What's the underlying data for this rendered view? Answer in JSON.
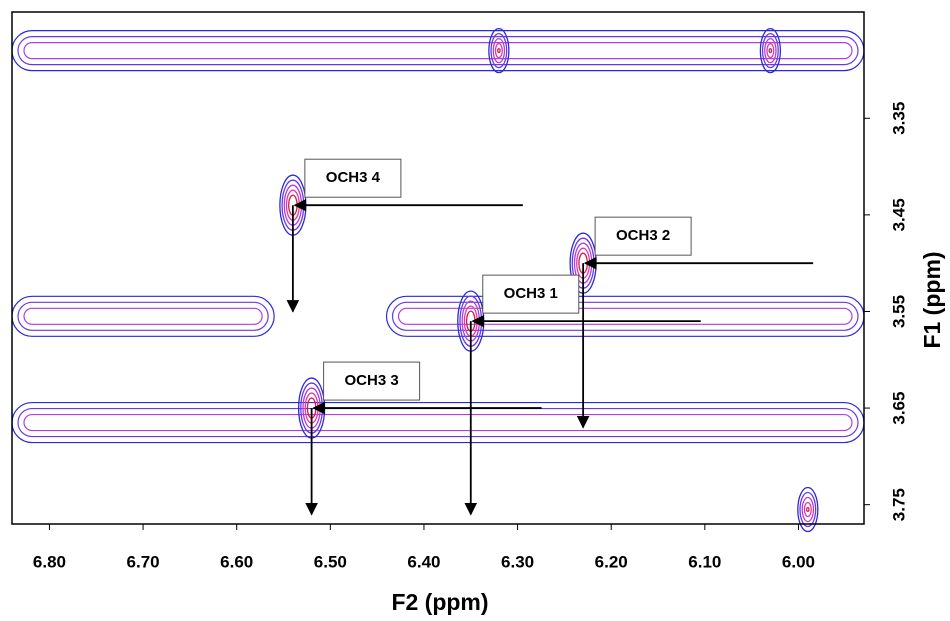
{
  "chart_data": {
    "type": "contour",
    "x_label": "F2 (ppm)",
    "y_label": "F1 (ppm)",
    "xlim": [
      6.84,
      5.93
    ],
    "ylim": [
      3.24,
      3.77
    ],
    "xticks": [
      {
        "value": 6.8,
        "label": "6.80"
      },
      {
        "value": 6.7,
        "label": "6.70"
      },
      {
        "value": 6.6,
        "label": "6.60"
      },
      {
        "value": 6.5,
        "label": "6.50"
      },
      {
        "value": 6.4,
        "label": "6.40"
      },
      {
        "value": 6.3,
        "label": "6.30"
      },
      {
        "value": 6.2,
        "label": "6.20"
      },
      {
        "value": 6.1,
        "label": "6.10"
      },
      {
        "value": 6.0,
        "label": "6.00"
      }
    ],
    "yticks": [
      3.35,
      3.45,
      3.55,
      3.65,
      3.75
    ],
    "colors": [
      "#2a2ad8",
      "#6a3ae0",
      "#b040d8",
      "#e03aa8",
      "#d0204a"
    ],
    "bands": [
      {
        "f1": 3.28,
        "from": 6.84,
        "to": 5.93
      },
      {
        "f1": 3.555,
        "from": 6.84,
        "to": 6.56
      },
      {
        "f1": 3.555,
        "from": 6.44,
        "to": 5.93
      },
      {
        "f1": 3.665,
        "from": 6.84,
        "to": 5.93
      }
    ],
    "peaks": [
      {
        "label": "OCH3 1",
        "x": 6.35,
        "y": 3.56,
        "arrow_to": 3.76
      },
      {
        "label": "OCH3 2",
        "x": 6.23,
        "y": 3.5,
        "arrow_to": 3.67
      },
      {
        "label": "OCH3 3",
        "x": 6.52,
        "y": 3.65,
        "arrow_to": 3.76
      },
      {
        "label": "OCH3 4",
        "x": 6.54,
        "y": 3.44,
        "arrow_to": 3.55
      }
    ],
    "other_peaks": [
      {
        "x": 6.32,
        "y": 3.28
      },
      {
        "x": 6.03,
        "y": 3.28
      },
      {
        "x": 5.99,
        "y": 3.755
      }
    ]
  }
}
